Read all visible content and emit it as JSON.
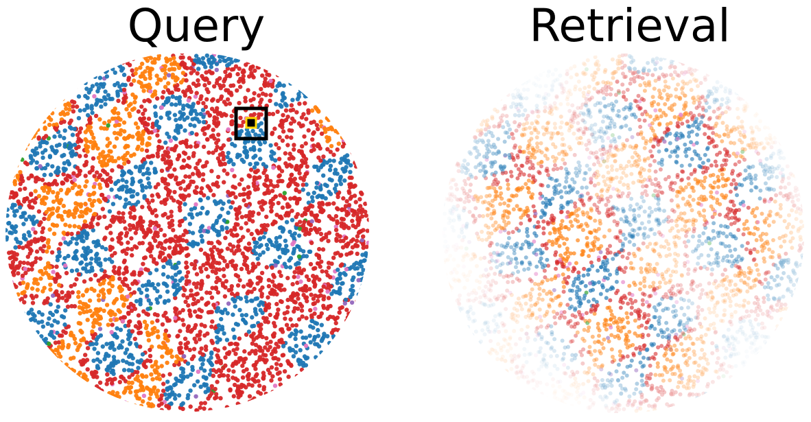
{
  "panels": {
    "query": {
      "title": "Query"
    },
    "retrieval": {
      "title": "Retrieval"
    }
  },
  "palette": {
    "blue": "#1f77b4",
    "orange": "#ff7f0e",
    "red": "#d62728",
    "pink": "#e377c2",
    "purple": "#9467bd",
    "green": "#2ca02c",
    "query_marker_outer": "#000000",
    "query_marker_inner": "#ffd700"
  }
}
